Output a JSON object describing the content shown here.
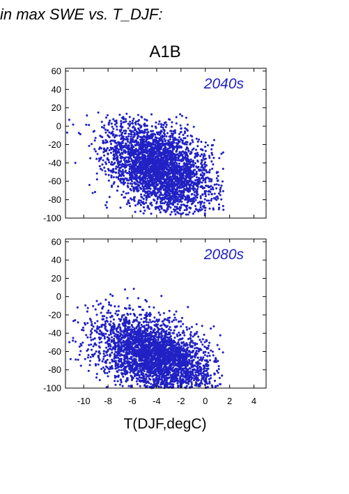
{
  "header_text": "in max SWE vs. T_DJF:",
  "colors": {
    "points": "#2121c4",
    "label": "#2121c4",
    "axis": "#000000"
  },
  "chart_data": [
    {
      "type": "scatter",
      "title": "A1B",
      "panel_label": "2040s",
      "xlabel": "",
      "ylabel": "",
      "xlim": [
        -11.5,
        5
      ],
      "ylim": [
        -100,
        63
      ],
      "xticks": [
        -10,
        -8,
        -6,
        -4,
        -2,
        0,
        2,
        4
      ],
      "yticks": [
        60,
        40,
        20,
        0,
        -20,
        -40,
        -60,
        -80,
        -100
      ],
      "show_xtick_labels": false,
      "grid": false,
      "cloud": {
        "n_points": 3200,
        "x_range": [
          -11.5,
          1.5
        ],
        "center": [
          -3.8,
          -45
        ],
        "spread": [
          2.2,
          22
        ],
        "trend_slope": -4.5,
        "y_range": [
          -97,
          15
        ]
      }
    },
    {
      "type": "scatter",
      "title": "",
      "panel_label": "2080s",
      "xlabel": "T(DJF,degC)",
      "ylabel": "",
      "xlim": [
        -11.5,
        5
      ],
      "ylim": [
        -100,
        63
      ],
      "xticks": [
        -10,
        -8,
        -6,
        -4,
        -2,
        0,
        2,
        4
      ],
      "yticks": [
        60,
        40,
        20,
        0,
        -20,
        -40,
        -60,
        -80,
        -100
      ],
      "show_xtick_labels": true,
      "grid": false,
      "cloud": {
        "n_points": 3200,
        "x_range": [
          -11.5,
          1.5
        ],
        "center": [
          -4.2,
          -65
        ],
        "spread": [
          2.3,
          20
        ],
        "trend_slope": -4.0,
        "y_range": [
          -100,
          20
        ]
      }
    }
  ]
}
